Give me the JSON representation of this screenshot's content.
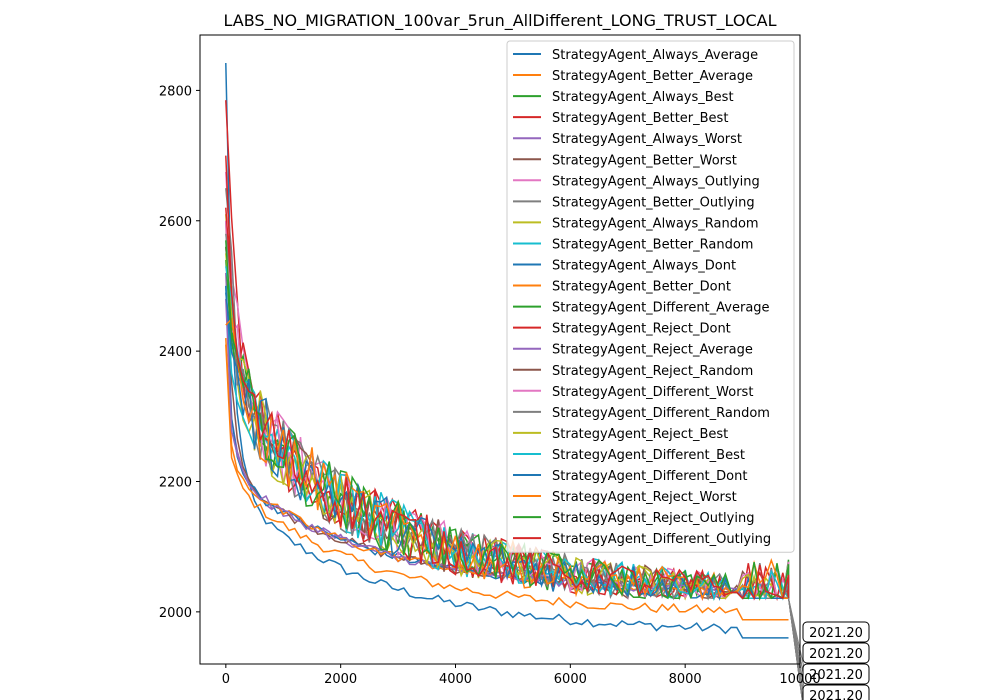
{
  "chart_data": {
    "type": "line",
    "title": "LABS_NO_MIGRATION_100var_5run_AllDifferent_LONG_TRUST_LOCAL",
    "xlabel": "",
    "ylabel": "",
    "xlim": [
      -450,
      10000
    ],
    "ylim": [
      1920,
      2885
    ],
    "x_ticks": [
      0,
      2000,
      4000,
      6000,
      8000,
      10000
    ],
    "x_tick_labels": [
      "0",
      "2000",
      "4000",
      "6000",
      "8000",
      "10000"
    ],
    "y_ticks": [
      2000,
      2200,
      2400,
      2600,
      2800
    ],
    "y_tick_labels": [
      "2000",
      "2200",
      "2400",
      "2600",
      "2800"
    ],
    "legend_position": "top-right",
    "annotation_values": [
      "2021.20",
      "2021.20",
      "2021.20",
      "2021.20"
    ],
    "series": [
      {
        "name": "StrategyAgent_Always_Average",
        "color": "#1f77b4",
        "start": 2842,
        "final": 1960,
        "mode": "step"
      },
      {
        "name": "StrategyAgent_Better_Average",
        "color": "#ff7f0e",
        "start": 2410,
        "final": 1988,
        "mode": "step"
      },
      {
        "name": "StrategyAgent_Always_Best",
        "color": "#2ca02c",
        "start": 2560,
        "final": 2021,
        "mode": "noisy"
      },
      {
        "name": "StrategyAgent_Better_Best",
        "color": "#d62728",
        "start": 2785,
        "final": 2021,
        "mode": "noisy"
      },
      {
        "name": "StrategyAgent_Always_Worst",
        "color": "#9467bd",
        "start": 2520,
        "final": 2021,
        "mode": "step"
      },
      {
        "name": "StrategyAgent_Better_Worst",
        "color": "#8c564b",
        "start": 2600,
        "final": 2021,
        "mode": "step"
      },
      {
        "name": "StrategyAgent_Always_Outlying",
        "color": "#e377c2",
        "start": 2675,
        "final": 2021,
        "mode": "noisy"
      },
      {
        "name": "StrategyAgent_Better_Outlying",
        "color": "#7f7f7f",
        "start": 2650,
        "final": 2021,
        "mode": "noisy"
      },
      {
        "name": "StrategyAgent_Always_Random",
        "color": "#bcbd22",
        "start": 2610,
        "final": 2021,
        "mode": "noisy"
      },
      {
        "name": "StrategyAgent_Better_Random",
        "color": "#17becf",
        "start": 2500,
        "final": 2021,
        "mode": "noisy"
      },
      {
        "name": "StrategyAgent_Always_Dont",
        "color": "#1f77b4",
        "start": 2500,
        "final": 2021,
        "mode": "step"
      },
      {
        "name": "StrategyAgent_Better_Dont",
        "color": "#ff7f0e",
        "start": 2420,
        "final": 2021,
        "mode": "step"
      },
      {
        "name": "StrategyAgent_Different_Average",
        "color": "#2ca02c",
        "start": 2540,
        "final": 2021,
        "mode": "noisy"
      },
      {
        "name": "StrategyAgent_Reject_Dont",
        "color": "#d62728",
        "start": 2700,
        "final": 2021,
        "mode": "noisy"
      },
      {
        "name": "StrategyAgent_Reject_Average",
        "color": "#9467bd",
        "start": 2480,
        "final": 2021,
        "mode": "step"
      },
      {
        "name": "StrategyAgent_Reject_Random",
        "color": "#8c564b",
        "start": 2560,
        "final": 2021,
        "mode": "noisy"
      },
      {
        "name": "StrategyAgent_Different_Worst",
        "color": "#e377c2",
        "start": 2600,
        "final": 2021,
        "mode": "noisy"
      },
      {
        "name": "StrategyAgent_Different_Random",
        "color": "#7f7f7f",
        "start": 2580,
        "final": 2021,
        "mode": "noisy"
      },
      {
        "name": "StrategyAgent_Reject_Best",
        "color": "#bcbd22",
        "start": 2550,
        "final": 2021,
        "mode": "noisy"
      },
      {
        "name": "StrategyAgent_Different_Best",
        "color": "#17becf",
        "start": 2530,
        "final": 2021,
        "mode": "noisy"
      },
      {
        "name": "StrategyAgent_Different_Dont",
        "color": "#1f77b4",
        "start": 2490,
        "final": 2021,
        "mode": "noisy"
      },
      {
        "name": "StrategyAgent_Reject_Worst",
        "color": "#ff7f0e",
        "start": 2440,
        "final": 2021,
        "mode": "noisy"
      },
      {
        "name": "StrategyAgent_Reject_Outlying",
        "color": "#2ca02c",
        "start": 2570,
        "final": 2021,
        "mode": "noisy"
      },
      {
        "name": "StrategyAgent_Different_Outlying",
        "color": "#d62728",
        "start": 2620,
        "final": 2021,
        "mode": "noisy"
      }
    ]
  }
}
